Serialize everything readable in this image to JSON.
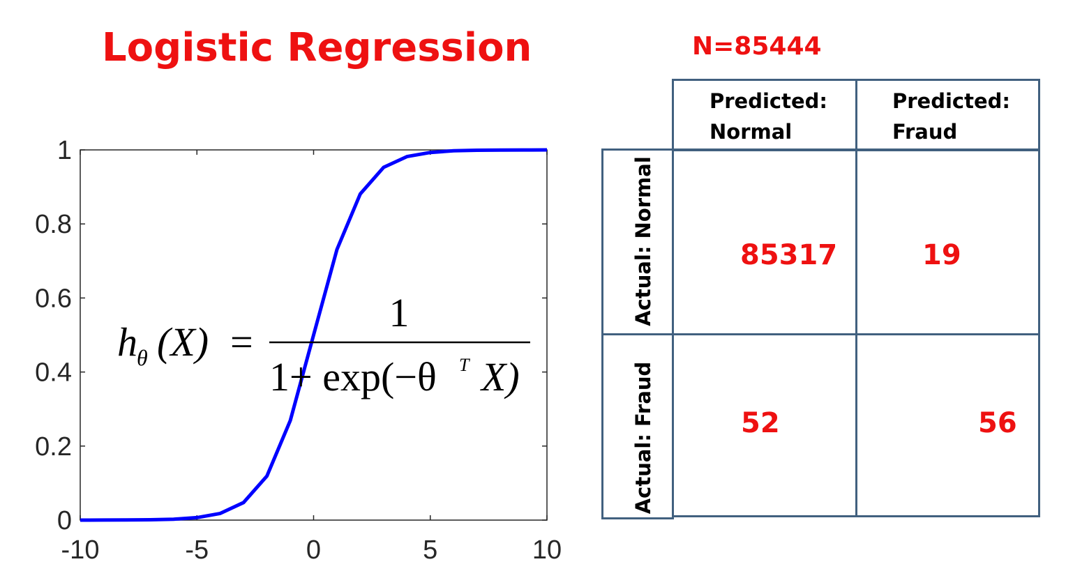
{
  "title": "Logistic Regression",
  "n_label": "N=85444",
  "accent_color": "#ee1111",
  "curve_color": "#0000ff",
  "formula": {
    "lhs_h": "h",
    "lhs_sub": "θ",
    "lhs_arg": "(X)",
    "equals": "=",
    "numerator": "1",
    "denominator_start": "1+ exp(−θ",
    "denominator_sup": "T",
    "denominator_end": "X)"
  },
  "chart_data": {
    "type": "line",
    "series": [
      {
        "x": [
          -10,
          -9,
          -8,
          -7,
          -6,
          -5,
          -4,
          -3,
          -2,
          -1,
          0,
          1,
          2,
          3,
          4,
          5,
          6,
          7,
          8,
          9,
          10
        ],
        "y": [
          4.54e-05,
          0.000123,
          0.000335,
          0.000911,
          0.00247,
          0.00669,
          0.018,
          0.0474,
          0.119,
          0.269,
          0.5,
          0.731,
          0.881,
          0.953,
          0.982,
          0.993,
          0.9975,
          0.9991,
          0.99966,
          0.99988,
          0.99995
        ]
      }
    ],
    "xlim": [
      -10,
      10
    ],
    "ylim": [
      0,
      1
    ],
    "xticks": [
      "-10",
      "-5",
      "0",
      "5",
      "10"
    ],
    "yticks": [
      "0",
      "0.2",
      "0.4",
      "0.6",
      "0.8",
      "1"
    ],
    "xlabel": "",
    "ylabel": "",
    "grid": false
  },
  "confusion_matrix": {
    "type": "table",
    "col_headers": [
      {
        "line1": "Predicted:",
        "line2": "Normal"
      },
      {
        "line1": "Predicted:",
        "line2": "Fraud"
      }
    ],
    "row_headers": [
      "Actual: Normal",
      "Actual: Fraud"
    ],
    "values": [
      [
        "85317",
        "19"
      ],
      [
        "52",
        "56"
      ]
    ]
  }
}
